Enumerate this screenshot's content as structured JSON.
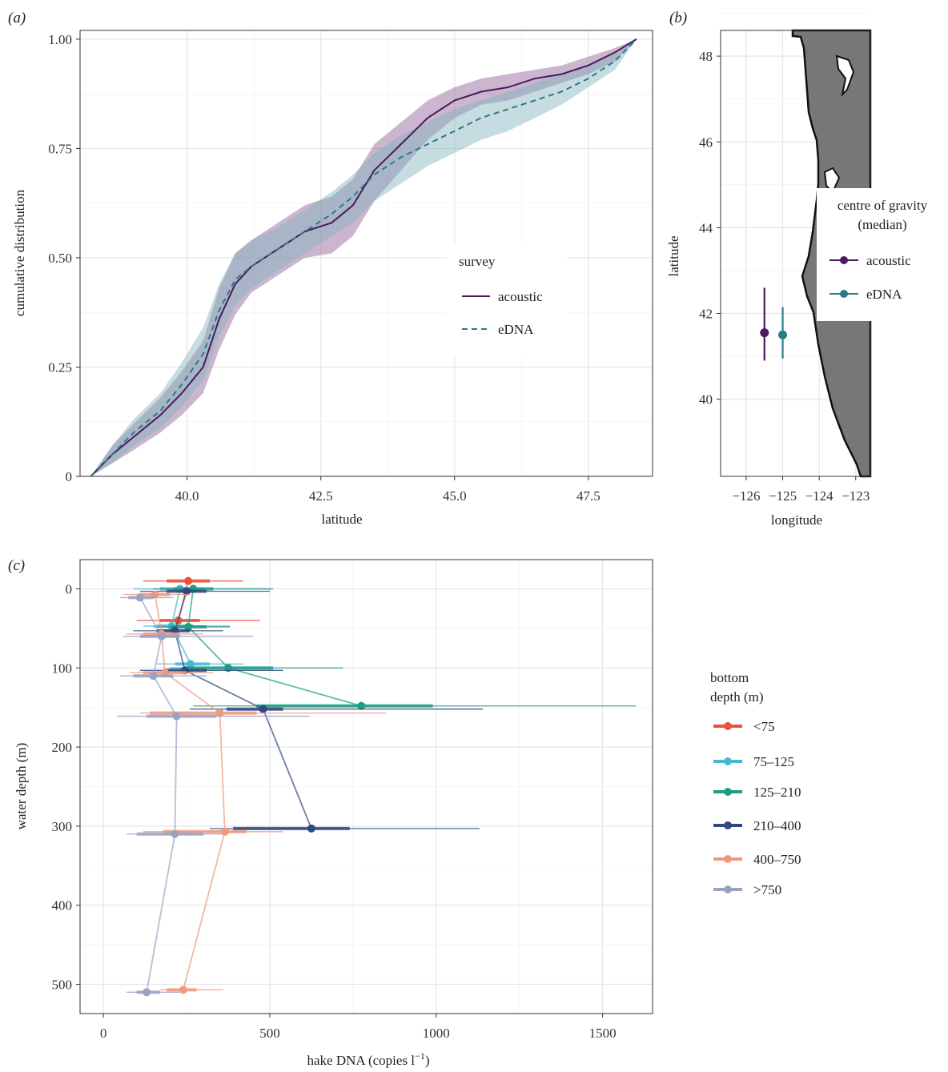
{
  "panel_labels": {
    "a": "(a)",
    "b": "(b)",
    "c": "(c)"
  },
  "colors": {
    "acoustic": "#4a1a5e",
    "acoustic_band": "#8e5e94",
    "edna": "#2b7a8a",
    "edna_band": "#7fb2bd",
    "map_land": "#777777",
    "map_coast": "#111111",
    "lt75": "#e8543a",
    "d75_125": "#45b8d6",
    "d125_210": "#1f9e80",
    "d210_400": "#2e4a82",
    "d400_750": "#f0997c",
    "gt750": "#9aa2c4"
  },
  "chart_data": [
    {
      "id": "a",
      "type": "line",
      "xlabel": "latitude",
      "ylabel": "cumulative distribution",
      "xlim": [
        38,
        48.7
      ],
      "ylim": [
        0,
        1.02
      ],
      "x_ticks": [
        40,
        42.5,
        45,
        47.5
      ],
      "x_tick_labels": [
        "40.0",
        "42.5",
        "45.0",
        "47.5"
      ],
      "y_ticks": [
        0,
        0.25,
        0.5,
        0.75,
        1
      ],
      "y_tick_labels": [
        "0",
        "0.25",
        "0.50",
        "0.75",
        "1.00"
      ],
      "grid": true,
      "legend": {
        "title": "survey",
        "position": "right-middle"
      },
      "series": [
        {
          "name": "acoustic",
          "style": "solid",
          "color_key": "acoustic",
          "x": [
            38.2,
            38.6,
            39.0,
            39.5,
            39.9,
            40.3,
            40.6,
            40.9,
            41.2,
            41.7,
            42.2,
            42.7,
            43.1,
            43.5,
            44.0,
            44.5,
            45.0,
            45.5,
            46.0,
            46.5,
            47.0,
            47.5,
            48.0,
            48.4
          ],
          "y": [
            0.0,
            0.05,
            0.09,
            0.14,
            0.19,
            0.25,
            0.36,
            0.44,
            0.48,
            0.52,
            0.56,
            0.58,
            0.62,
            0.7,
            0.76,
            0.82,
            0.86,
            0.88,
            0.89,
            0.91,
            0.92,
            0.94,
            0.97,
            1.0
          ],
          "lower": [
            0.0,
            0.03,
            0.06,
            0.1,
            0.14,
            0.19,
            0.29,
            0.37,
            0.42,
            0.46,
            0.5,
            0.51,
            0.55,
            0.63,
            0.7,
            0.77,
            0.82,
            0.85,
            0.86,
            0.88,
            0.9,
            0.92,
            0.95,
            1.0
          ],
          "upper": [
            0.0,
            0.07,
            0.12,
            0.18,
            0.24,
            0.31,
            0.43,
            0.51,
            0.54,
            0.58,
            0.62,
            0.64,
            0.68,
            0.76,
            0.81,
            0.86,
            0.89,
            0.91,
            0.92,
            0.93,
            0.94,
            0.96,
            0.98,
            1.0
          ]
        },
        {
          "name": "eDNA",
          "style": "dashed",
          "color_key": "edna",
          "x": [
            38.2,
            38.6,
            39.0,
            39.5,
            39.9,
            40.3,
            40.6,
            40.9,
            41.2,
            41.7,
            42.2,
            42.7,
            43.1,
            43.5,
            44.0,
            44.5,
            45.0,
            45.5,
            46.0,
            46.5,
            47.0,
            47.5,
            48.0,
            48.4
          ],
          "y": [
            0.0,
            0.05,
            0.1,
            0.15,
            0.21,
            0.28,
            0.38,
            0.45,
            0.48,
            0.52,
            0.56,
            0.6,
            0.64,
            0.69,
            0.73,
            0.76,
            0.79,
            0.82,
            0.84,
            0.86,
            0.88,
            0.91,
            0.95,
            1.0
          ],
          "lower": [
            0.0,
            0.03,
            0.07,
            0.11,
            0.16,
            0.22,
            0.32,
            0.39,
            0.43,
            0.47,
            0.51,
            0.55,
            0.58,
            0.63,
            0.67,
            0.71,
            0.74,
            0.77,
            0.79,
            0.82,
            0.85,
            0.89,
            0.93,
            1.0
          ],
          "upper": [
            0.0,
            0.07,
            0.13,
            0.19,
            0.26,
            0.34,
            0.44,
            0.51,
            0.54,
            0.57,
            0.61,
            0.65,
            0.69,
            0.74,
            0.78,
            0.81,
            0.84,
            0.86,
            0.88,
            0.9,
            0.92,
            0.94,
            0.97,
            1.0
          ]
        }
      ]
    },
    {
      "id": "b",
      "type": "scatter",
      "xlabel": "longitude",
      "ylabel": "latitude",
      "xlim": [
        -126.7,
        -122.6
      ],
      "ylim": [
        38.2,
        48.6
      ],
      "x_ticks": [
        -126,
        -125,
        -124,
        -123
      ],
      "x_tick_labels": [
        "−126",
        "−125",
        "−124",
        "−123"
      ],
      "y_ticks": [
        40,
        42,
        44,
        46,
        48
      ],
      "y_tick_labels": [
        "40",
        "42",
        "44",
        "46",
        "48"
      ],
      "grid": true,
      "legend": {
        "title_line1": "centre of gravity",
        "title_line2": "(median)",
        "position": "right"
      },
      "series": [
        {
          "name": "acoustic",
          "color_key": "acoustic",
          "x": -125.5,
          "y": 41.55,
          "ymin": 40.9,
          "ymax": 42.6
        },
        {
          "name": "eDNA",
          "color_key": "edna",
          "x": -125.0,
          "y": 41.5,
          "ymin": 40.95,
          "ymax": 42.15
        }
      ]
    },
    {
      "id": "c",
      "type": "line",
      "xlabel": "hake DNA (copies l",
      "xlabel_sup": "−1",
      "xlabel_close": ")",
      "ylabel": "water depth (m)",
      "xlim": [
        -70,
        1650
      ],
      "ylim": [
        -37,
        537
      ],
      "x_ticks": [
        0,
        500,
        1000,
        1500
      ],
      "x_tick_labels": [
        "0",
        "500",
        "1000",
        "1500"
      ],
      "y_ticks": [
        0,
        100,
        200,
        300,
        400,
        500
      ],
      "y_tick_labels": [
        "0",
        "100",
        "200",
        "300",
        "400",
        "500"
      ],
      "grid": true,
      "legend": {
        "title_line1": "bottom",
        "title_line2": "depth (m)",
        "position": "right"
      },
      "series": [
        {
          "name": "<75",
          "color_key": "lt75",
          "points": [
            {
              "x": 255,
              "y": -10,
              "lo": 190,
              "hi": 320,
              "min": 120,
              "max": 420
            },
            {
              "x": 225,
              "y": 40,
              "lo": 170,
              "hi": 290,
              "min": 100,
              "max": 470
            }
          ]
        },
        {
          "name": "75–125",
          "color_key": "d75_125",
          "points": [
            {
              "x": 230,
              "y": 0,
              "lo": 170,
              "hi": 300,
              "min": 90,
              "max": 500
            },
            {
              "x": 205,
              "y": 47,
              "lo": 160,
              "hi": 270,
              "min": 120,
              "max": 380
            },
            {
              "x": 262,
              "y": 95,
              "lo": 215,
              "hi": 320,
              "min": 160,
              "max": 420
            }
          ]
        },
        {
          "name": "125–210",
          "color_key": "d125_210",
          "points": [
            {
              "x": 270,
              "y": 0,
              "lo": 210,
              "hi": 330,
              "min": 150,
              "max": 510
            },
            {
              "x": 255,
              "y": 48,
              "lo": 200,
              "hi": 310,
              "min": 150,
              "max": 380
            },
            {
              "x": 375,
              "y": 100,
              "lo": 250,
              "hi": 510,
              "min": 200,
              "max": 720
            },
            {
              "x": 775,
              "y": 148,
              "lo": 460,
              "hi": 990,
              "min": 270,
              "max": 1600
            }
          ]
        },
        {
          "name": "210–400",
          "color_key": "d210_400",
          "points": [
            {
              "x": 250,
              "y": 3,
              "lo": 190,
              "hi": 310,
              "min": 110,
              "max": 500
            },
            {
              "x": 215,
              "y": 53,
              "lo": 160,
              "hi": 260,
              "min": 90,
              "max": 360
            },
            {
              "x": 245,
              "y": 103,
              "lo": 180,
              "hi": 310,
              "min": 110,
              "max": 540
            },
            {
              "x": 480,
              "y": 152,
              "lo": 370,
              "hi": 540,
              "min": 260,
              "max": 1140
            },
            {
              "x": 625,
              "y": 303,
              "lo": 390,
              "hi": 740,
              "min": 320,
              "max": 1130
            }
          ]
        },
        {
          "name": "400–750",
          "color_key": "d400_750",
          "points": [
            {
              "x": 155,
              "y": 7,
              "lo": 110,
              "hi": 200,
              "min": 60,
              "max": 260
            },
            {
              "x": 175,
              "y": 57,
              "lo": 120,
              "hi": 230,
              "min": 70,
              "max": 300
            },
            {
              "x": 185,
              "y": 106,
              "lo": 120,
              "hi": 250,
              "min": 80,
              "max": 330
            },
            {
              "x": 350,
              "y": 157,
              "lo": 140,
              "hi": 460,
              "min": 110,
              "max": 850
            },
            {
              "x": 365,
              "y": 307,
              "lo": 180,
              "hi": 430,
              "min": 120,
              "max": 540
            },
            {
              "x": 240,
              "y": 507,
              "lo": 190,
              "hi": 280,
              "min": 170,
              "max": 360
            }
          ]
        },
        {
          "name": ">750",
          "color_key": "gt750",
          "points": [
            {
              "x": 110,
              "y": 11,
              "lo": 75,
              "hi": 150,
              "min": 50,
              "max": 210
            },
            {
              "x": 175,
              "y": 60,
              "lo": 110,
              "hi": 230,
              "min": 60,
              "max": 450
            },
            {
              "x": 150,
              "y": 110,
              "lo": 90,
              "hi": 210,
              "min": 50,
              "max": 310
            },
            {
              "x": 220,
              "y": 161,
              "lo": 130,
              "hi": 340,
              "min": 40,
              "max": 620
            },
            {
              "x": 215,
              "y": 310,
              "lo": 100,
              "hi": 300,
              "min": 70,
              "max": 360
            },
            {
              "x": 130,
              "y": 510,
              "lo": 100,
              "hi": 170,
              "min": 70,
              "max": 230
            }
          ]
        }
      ]
    }
  ]
}
